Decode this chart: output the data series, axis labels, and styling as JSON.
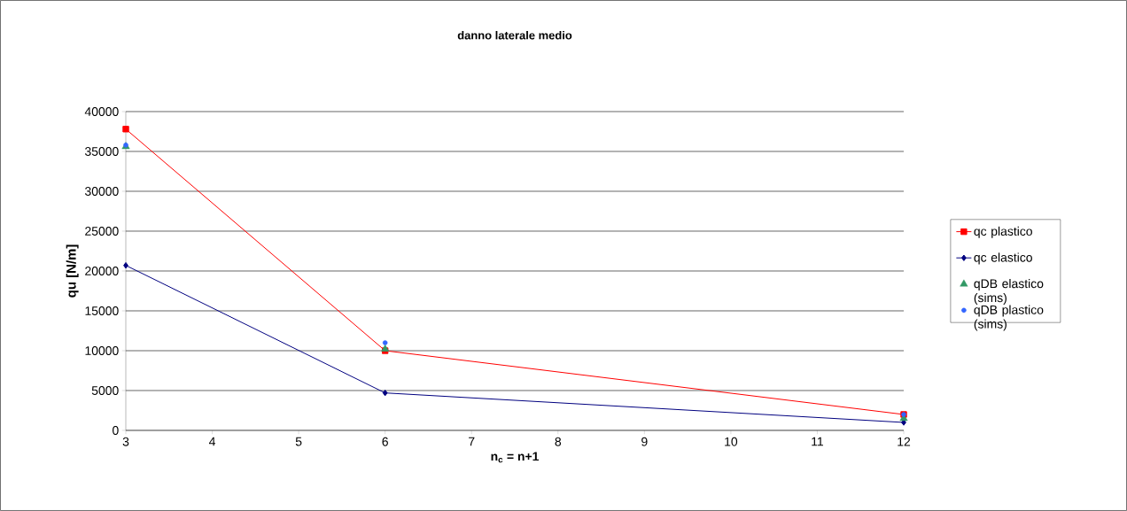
{
  "chart_data": {
    "type": "line",
    "title": "danno laterale medio",
    "xlabel": "n$_{c}$ = n+1",
    "ylabel": "qu [N/m]",
    "x": [
      3,
      6,
      12
    ],
    "series": [
      {
        "name": "qc plastico",
        "color": "#ff0000",
        "marker": "square",
        "values": [
          37800,
          10000,
          2000
        ]
      },
      {
        "name": "qc elastico",
        "color": "#000080",
        "marker": "diamond",
        "values": [
          20700,
          4700,
          1000
        ]
      },
      {
        "name": "qDB elastico (sims)",
        "color": "#339966",
        "type": "scatter",
        "marker": "triangle",
        "values": [
          35600,
          10200,
          1500
        ]
      },
      {
        "name": "qDB plastico (sims)",
        "color": "#3366ff",
        "type": "scatter",
        "marker": "circle",
        "values": [
          35800,
          11000,
          2000
        ]
      }
    ],
    "xlim": [
      3,
      12
    ],
    "xticks": [
      3,
      4,
      5,
      6,
      7,
      8,
      9,
      10,
      11,
      12
    ],
    "ylim": [
      0,
      40000
    ],
    "yticks": [
      0,
      5000,
      10000,
      15000,
      20000,
      25000,
      30000,
      35000,
      40000
    ],
    "grid": "y",
    "legend": "right"
  }
}
